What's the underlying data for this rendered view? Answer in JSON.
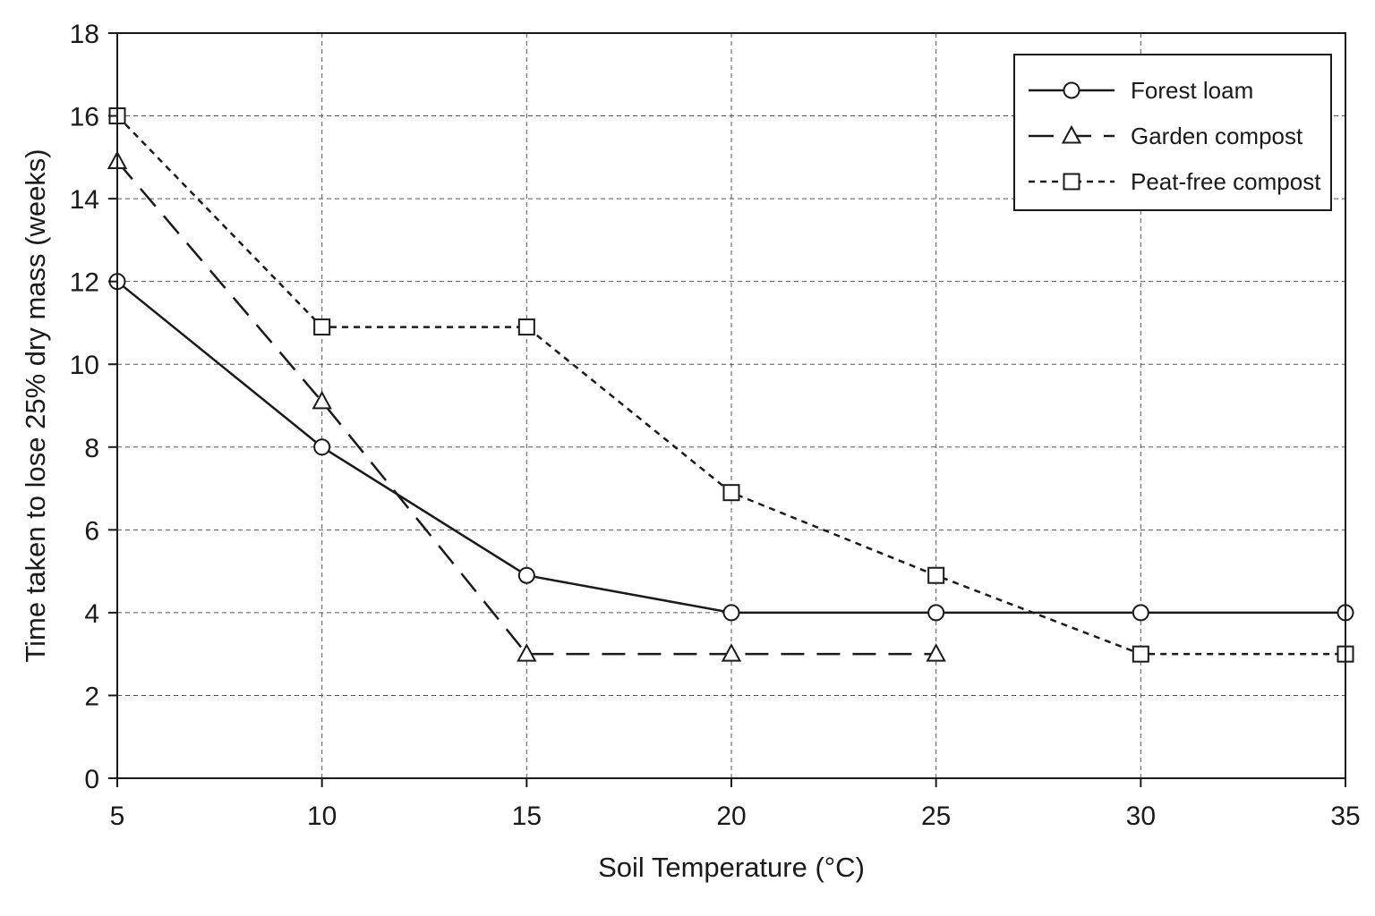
{
  "chart_data": {
    "type": "line",
    "title": "",
    "xlabel": "Soil Temperature (°C)",
    "ylabel": "Time taken to lose 25% dry mass (weeks)",
    "x": [
      5,
      10,
      15,
      20,
      25,
      30,
      35
    ],
    "xlim": [
      5,
      35
    ],
    "ylim": [
      0,
      18
    ],
    "xticks": [
      5,
      10,
      15,
      20,
      25,
      30,
      35
    ],
    "yticks": [
      0,
      2,
      4,
      6,
      8,
      10,
      12,
      14,
      16,
      18
    ],
    "grid": true,
    "legend_position": "top-right",
    "series": [
      {
        "name": "Forest loam",
        "marker": "circle",
        "line": "solid",
        "color": "#1a1a1a",
        "x": [
          5,
          10,
          15,
          20,
          25,
          30,
          35
        ],
        "values": [
          12,
          8,
          4.9,
          4,
          4,
          4,
          4
        ]
      },
      {
        "name": "Garden compost",
        "marker": "triangle",
        "line": "dashed",
        "color": "#1a1a1a",
        "x": [
          5,
          10,
          15,
          20,
          25
        ],
        "values": [
          14.9,
          9.1,
          3,
          3,
          3
        ]
      },
      {
        "name": "Peat-free compost",
        "marker": "square",
        "line": "dotted",
        "color": "#1a1a1a",
        "x": [
          5,
          10,
          15,
          20,
          25,
          30,
          35
        ],
        "values": [
          16,
          10.9,
          10.9,
          6.9,
          4.9,
          3,
          3
        ]
      }
    ]
  }
}
